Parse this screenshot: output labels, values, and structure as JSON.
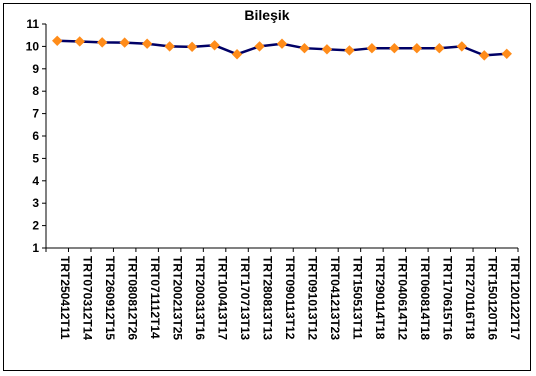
{
  "chart_data": {
    "type": "line",
    "title": "Bileşik",
    "ylim": [
      1,
      11
    ],
    "yticks": [
      1,
      2,
      3,
      4,
      5,
      6,
      7,
      8,
      9,
      10,
      11
    ],
    "categories": [
      "TRT250412T11",
      "TRT070312T14",
      "TRT260912T15",
      "TRT080812T26",
      "TRT071112T14",
      "TRT200213T25",
      "TRT200313T16",
      "TRT100413T17",
      "TRT170713T13",
      "TRT280813T13",
      "TRT090113T12",
      "TRT091013T12",
      "TRT041213T23",
      "TRT150513T11",
      "TRT290114T18",
      "TRT040614T12",
      "TRT060814T18",
      "TRT170615T16",
      "TRT270116T18",
      "TRT150120T16",
      "TRT120122T17"
    ],
    "series": [
      {
        "values": [
          10.25,
          10.22,
          10.18,
          10.17,
          10.12,
          10.0,
          9.98,
          10.05,
          9.65,
          10.0,
          10.12,
          9.92,
          9.87,
          9.82,
          9.92,
          9.92,
          9.92,
          9.92,
          10.0,
          9.6,
          9.67
        ],
        "line_color": "#000066",
        "marker_color": "#ff8c1a"
      }
    ],
    "grid": false,
    "legend": "none"
  }
}
